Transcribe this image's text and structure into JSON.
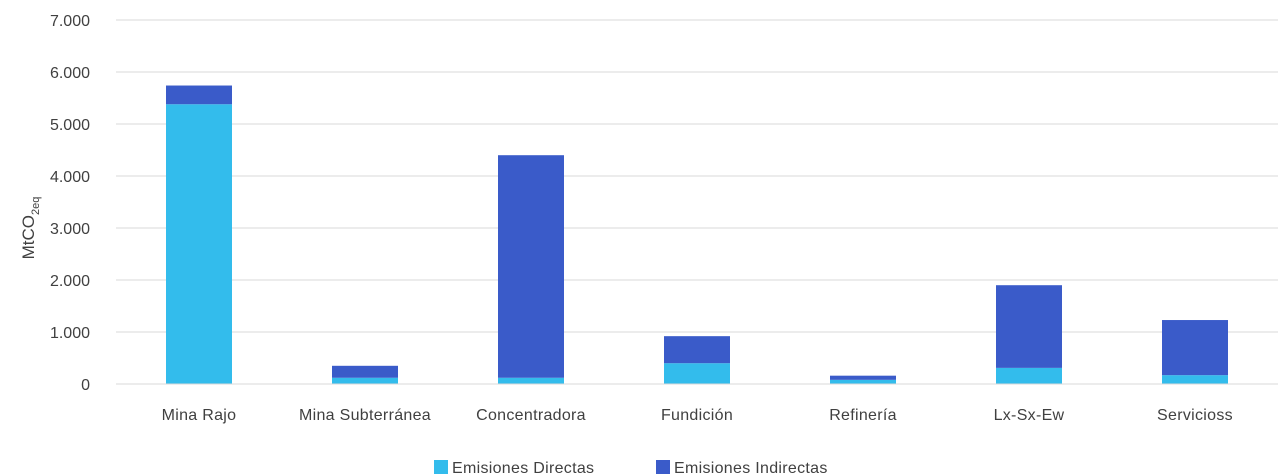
{
  "chart_data": {
    "type": "bar",
    "stacked": true,
    "categories": [
      "Mina Rajo",
      "Mina Subterránea",
      "Concentradora",
      "Fundición",
      "Refinería",
      "Lx-Sx-Ew",
      "Servicioss"
    ],
    "series": [
      {
        "name": "Emisiones Directas",
        "color": "#33BCEC",
        "values": [
          5380,
          120,
          120,
          400,
          80,
          310,
          170
        ]
      },
      {
        "name": "Emisiones Indirectas",
        "color": "#3A5BC9",
        "values": [
          360,
          230,
          4280,
          520,
          80,
          1590,
          1060
        ]
      }
    ],
    "ylabel": {
      "main": "MtCO",
      "sub": "2eq"
    },
    "ylim": [
      0,
      7000
    ],
    "yticks": [
      0,
      1000,
      2000,
      3000,
      4000,
      5000,
      6000,
      7000
    ],
    "ytick_labels": [
      "0",
      "1.000",
      "2.000",
      "3.000",
      "4.000",
      "5.000",
      "6.000",
      "7.000"
    ],
    "grid": true,
    "legend_position": "bottom"
  }
}
